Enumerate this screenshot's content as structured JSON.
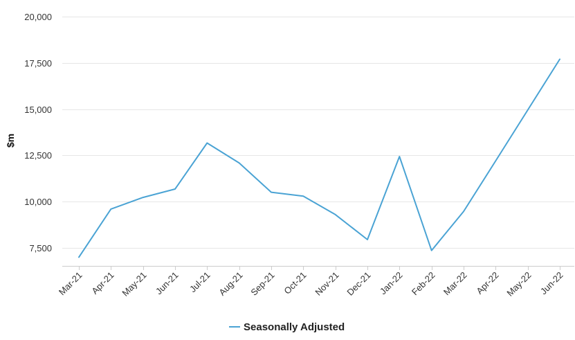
{
  "chart_data": {
    "type": "line",
    "title": "",
    "xlabel": "",
    "ylabel": "$m",
    "ylim": [
      6500,
      20000
    ],
    "yticks": [
      7500,
      10000,
      12500,
      15000,
      17500,
      20000
    ],
    "ytick_labels": [
      "7,500",
      "10,000",
      "12,500",
      "15,000",
      "17,500",
      "20,000"
    ],
    "categories": [
      "Mar-21",
      "Apr-21",
      "May-21",
      "Jun-21",
      "Jul-21",
      "Aug-21",
      "Sep-21",
      "Oct-21",
      "Nov-21",
      "Dec-21",
      "Jan-22",
      "Feb-22",
      "Mar-22",
      "Apr-22",
      "May-22",
      "Jun-22"
    ],
    "series": [
      {
        "name": "Seasonally Adjusted",
        "color": "#4aa3d4",
        "values": [
          7000,
          9600,
          10230,
          10680,
          13170,
          12090,
          10510,
          10300,
          9300,
          7950,
          12440,
          7360,
          9470,
          12200,
          14950,
          17700
        ]
      }
    ],
    "grid": true,
    "legend": "bottom-center"
  }
}
